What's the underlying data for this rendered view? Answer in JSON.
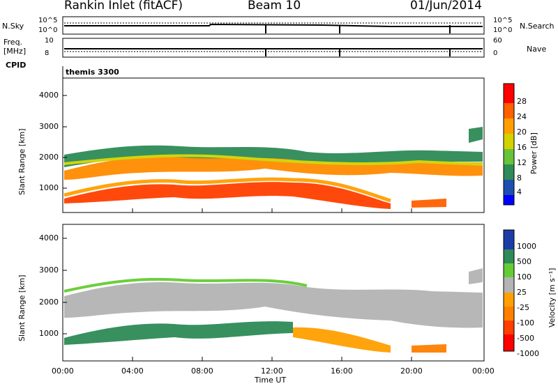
{
  "header": {
    "station": "Rankin Inlet (fitACF)",
    "beam": "Beam 10",
    "date": "01/Jun/2014"
  },
  "sky_panel": {
    "left_label": "N.Sky",
    "right_label": "N.Search",
    "left_ticks": [
      "10^5",
      "10^0"
    ],
    "right_ticks": [
      "10^5",
      "10^0"
    ]
  },
  "freq_panel": {
    "left_label_1": "Freq.",
    "left_label_2": "[MHz]",
    "left_ticks": [
      "10",
      "8"
    ],
    "right_label": "Nave",
    "right_ticks": [
      "60",
      "0"
    ]
  },
  "cpid": {
    "label": "CPID",
    "value": "themis 3300"
  },
  "x_axis": {
    "label": "Time UT",
    "ticks": [
      "00:00",
      "04:00",
      "08:00",
      "12:00",
      "16:00",
      "20:00",
      "00:00"
    ]
  },
  "power_panel": {
    "ylabel": "Slant Range [km]",
    "yticks": [
      "1000",
      "2000",
      "3000",
      "4000"
    ],
    "colorbar_label": "Power [dB]",
    "colorbar_ticks": [
      "28",
      "24",
      "20",
      "16",
      "12",
      "8",
      "4"
    ],
    "colors": [
      "#0000ff",
      "#1e4fb0",
      "#2e8b57",
      "#66c33a",
      "#d2d200",
      "#ffa000",
      "#ff6000",
      "#ff0000"
    ]
  },
  "velocity_panel": {
    "ylabel": "Slant Range [km]",
    "yticks": [
      "1000",
      "2000",
      "3000",
      "4000"
    ],
    "colorbar_label": "Velocity [m s⁻¹]",
    "colorbar_ticks": [
      "1000",
      "500",
      "100",
      "25",
      "-25",
      "-100",
      "-500",
      "-1000"
    ],
    "colors": [
      "#1e3ca8",
      "#2e8b57",
      "#66cc33",
      "#b4b4b4",
      "#ffa000",
      "#ff8000",
      "#ff4000",
      "#ff0000"
    ]
  },
  "chart_data": [
    {
      "type": "heatmap",
      "title": "Power",
      "xlabel": "Time UT",
      "ylabel": "Slant Range [km]",
      "xlim": [
        "00:00",
        "24:00"
      ],
      "ylim": [
        180,
        4500
      ],
      "colorbar": {
        "label": "Power [dB]",
        "range": [
          0,
          30
        ],
        "ticks": [
          4,
          8,
          12,
          16,
          20,
          24,
          28
        ]
      },
      "bands": [
        {
          "name": "lower echo band",
          "x_hours": [
            0,
            18
          ],
          "range_km": [
            600,
            1300
          ],
          "typical_power_db": 24
        },
        {
          "name": "upper echo band",
          "x_hours": [
            0,
            24
          ],
          "range_km": [
            1400,
            2400
          ],
          "typical_power_db": 16
        },
        {
          "name": "late high-range echoes",
          "x_hours": [
            22.5,
            24
          ],
          "range_km": [
            2300,
            3000
          ],
          "typical_power_db": 10
        }
      ]
    },
    {
      "type": "heatmap",
      "title": "Velocity",
      "xlabel": "Time UT",
      "ylabel": "Slant Range [km]",
      "xlim": [
        "00:00",
        "24:00"
      ],
      "ylim": [
        180,
        4500
      ],
      "colorbar": {
        "label": "Velocity [m s⁻¹]",
        "range": [
          -1000,
          1000
        ],
        "ticks": [
          1000,
          500,
          100,
          25,
          -25,
          -100,
          -500,
          -1000
        ]
      },
      "bands": [
        {
          "name": "lower echo band",
          "x_hours": [
            0,
            18
          ],
          "range_km": [
            600,
            1300
          ],
          "typical_velocity": 300
        },
        {
          "name": "upper echo band",
          "x_hours": [
            0,
            24
          ],
          "range_km": [
            1400,
            2400
          ],
          "typical_velocity": 0
        },
        {
          "name": "late negative velocities",
          "x_hours": [
            14,
            22
          ],
          "range_km": [
            400,
            1200
          ],
          "typical_velocity": -300
        }
      ]
    }
  ]
}
